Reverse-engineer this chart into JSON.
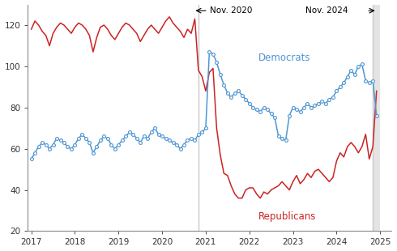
{
  "xlim": [
    2016.92,
    2025.25
  ],
  "ylim": [
    20,
    130
  ],
  "yticks": [
    20,
    40,
    60,
    80,
    100,
    120
  ],
  "xtick_years": [
    2017,
    2018,
    2019,
    2020,
    2021,
    2022,
    2023,
    2024,
    2025
  ],
  "nov2020_x": 2020.833,
  "nov2024_x": 2024.833,
  "vline_color": "#c8c8c8",
  "shade_color": "#e4e4e4",
  "dem_color": "#4f96d4",
  "rep_color": "#cc2222",
  "dem_label": "Democrats",
  "rep_label": "Republicans",
  "republicans": [
    [
      2017.0,
      118
    ],
    [
      2017.083,
      122
    ],
    [
      2017.167,
      120
    ],
    [
      2017.25,
      117
    ],
    [
      2017.333,
      115
    ],
    [
      2017.417,
      110
    ],
    [
      2017.5,
      116
    ],
    [
      2017.583,
      119
    ],
    [
      2017.667,
      121
    ],
    [
      2017.75,
      120
    ],
    [
      2017.833,
      118
    ],
    [
      2017.917,
      116
    ],
    [
      2018.0,
      119
    ],
    [
      2018.083,
      121
    ],
    [
      2018.167,
      120
    ],
    [
      2018.25,
      118
    ],
    [
      2018.333,
      115
    ],
    [
      2018.417,
      107
    ],
    [
      2018.5,
      114
    ],
    [
      2018.583,
      119
    ],
    [
      2018.667,
      120
    ],
    [
      2018.75,
      118
    ],
    [
      2018.833,
      115
    ],
    [
      2018.917,
      113
    ],
    [
      2019.0,
      116
    ],
    [
      2019.083,
      119
    ],
    [
      2019.167,
      121
    ],
    [
      2019.25,
      120
    ],
    [
      2019.333,
      118
    ],
    [
      2019.417,
      116
    ],
    [
      2019.5,
      112
    ],
    [
      2019.583,
      115
    ],
    [
      2019.667,
      118
    ],
    [
      2019.75,
      120
    ],
    [
      2019.833,
      118
    ],
    [
      2019.917,
      116
    ],
    [
      2020.0,
      119
    ],
    [
      2020.083,
      122
    ],
    [
      2020.167,
      124
    ],
    [
      2020.25,
      121
    ],
    [
      2020.333,
      119
    ],
    [
      2020.417,
      117
    ],
    [
      2020.5,
      114
    ],
    [
      2020.583,
      118
    ],
    [
      2020.667,
      116
    ],
    [
      2020.75,
      123
    ],
    [
      2020.833,
      98
    ],
    [
      2020.917,
      95
    ],
    [
      2021.0,
      88
    ],
    [
      2021.083,
      97
    ],
    [
      2021.167,
      99
    ],
    [
      2021.25,
      70
    ],
    [
      2021.333,
      57
    ],
    [
      2021.417,
      48
    ],
    [
      2021.5,
      47
    ],
    [
      2021.583,
      42
    ],
    [
      2021.667,
      38
    ],
    [
      2021.75,
      36
    ],
    [
      2021.833,
      36
    ],
    [
      2021.917,
      40
    ],
    [
      2022.0,
      41
    ],
    [
      2022.083,
      41
    ],
    [
      2022.167,
      38
    ],
    [
      2022.25,
      36
    ],
    [
      2022.333,
      39
    ],
    [
      2022.417,
      38
    ],
    [
      2022.5,
      40
    ],
    [
      2022.583,
      41
    ],
    [
      2022.667,
      42
    ],
    [
      2022.75,
      44
    ],
    [
      2022.833,
      42
    ],
    [
      2022.917,
      40
    ],
    [
      2023.0,
      44
    ],
    [
      2023.083,
      47
    ],
    [
      2023.167,
      43
    ],
    [
      2023.25,
      45
    ],
    [
      2023.333,
      48
    ],
    [
      2023.417,
      46
    ],
    [
      2023.5,
      49
    ],
    [
      2023.583,
      50
    ],
    [
      2023.667,
      48
    ],
    [
      2023.75,
      46
    ],
    [
      2023.833,
      44
    ],
    [
      2023.917,
      46
    ],
    [
      2024.0,
      54
    ],
    [
      2024.083,
      58
    ],
    [
      2024.167,
      56
    ],
    [
      2024.25,
      61
    ],
    [
      2024.333,
      63
    ],
    [
      2024.417,
      61
    ],
    [
      2024.5,
      58
    ],
    [
      2024.583,
      61
    ],
    [
      2024.667,
      67
    ],
    [
      2024.75,
      55
    ],
    [
      2024.833,
      61
    ],
    [
      2024.917,
      88
    ]
  ],
  "democrats": [
    [
      2017.0,
      55
    ],
    [
      2017.083,
      58
    ],
    [
      2017.167,
      61
    ],
    [
      2017.25,
      63
    ],
    [
      2017.333,
      62
    ],
    [
      2017.417,
      60
    ],
    [
      2017.5,
      62
    ],
    [
      2017.583,
      65
    ],
    [
      2017.667,
      64
    ],
    [
      2017.75,
      63
    ],
    [
      2017.833,
      61
    ],
    [
      2017.917,
      60
    ],
    [
      2018.0,
      62
    ],
    [
      2018.083,
      65
    ],
    [
      2018.167,
      67
    ],
    [
      2018.25,
      65
    ],
    [
      2018.333,
      63
    ],
    [
      2018.417,
      58
    ],
    [
      2018.5,
      61
    ],
    [
      2018.583,
      64
    ],
    [
      2018.667,
      66
    ],
    [
      2018.75,
      65
    ],
    [
      2018.833,
      62
    ],
    [
      2018.917,
      60
    ],
    [
      2019.0,
      62
    ],
    [
      2019.083,
      64
    ],
    [
      2019.167,
      66
    ],
    [
      2019.25,
      68
    ],
    [
      2019.333,
      67
    ],
    [
      2019.417,
      65
    ],
    [
      2019.5,
      63
    ],
    [
      2019.583,
      66
    ],
    [
      2019.667,
      65
    ],
    [
      2019.75,
      68
    ],
    [
      2019.833,
      70
    ],
    [
      2019.917,
      67
    ],
    [
      2020.0,
      66
    ],
    [
      2020.083,
      65
    ],
    [
      2020.167,
      64
    ],
    [
      2020.25,
      63
    ],
    [
      2020.333,
      62
    ],
    [
      2020.417,
      60
    ],
    [
      2020.5,
      62
    ],
    [
      2020.583,
      64
    ],
    [
      2020.667,
      65
    ],
    [
      2020.75,
      64
    ],
    [
      2020.833,
      67
    ],
    [
      2020.917,
      68
    ],
    [
      2021.0,
      70
    ],
    [
      2021.083,
      107
    ],
    [
      2021.167,
      106
    ],
    [
      2021.25,
      102
    ],
    [
      2021.333,
      96
    ],
    [
      2021.417,
      91
    ],
    [
      2021.5,
      87
    ],
    [
      2021.583,
      85
    ],
    [
      2021.667,
      87
    ],
    [
      2021.75,
      88
    ],
    [
      2021.833,
      86
    ],
    [
      2021.917,
      84
    ],
    [
      2022.0,
      82
    ],
    [
      2022.083,
      80
    ],
    [
      2022.167,
      79
    ],
    [
      2022.25,
      78
    ],
    [
      2022.333,
      80
    ],
    [
      2022.417,
      79
    ],
    [
      2022.5,
      77
    ],
    [
      2022.583,
      75
    ],
    [
      2022.667,
      66
    ],
    [
      2022.75,
      65
    ],
    [
      2022.833,
      64
    ],
    [
      2022.917,
      76
    ],
    [
      2023.0,
      80
    ],
    [
      2023.083,
      79
    ],
    [
      2023.167,
      78
    ],
    [
      2023.25,
      80
    ],
    [
      2023.333,
      82
    ],
    [
      2023.417,
      80
    ],
    [
      2023.5,
      81
    ],
    [
      2023.583,
      82
    ],
    [
      2023.667,
      83
    ],
    [
      2023.75,
      82
    ],
    [
      2023.833,
      84
    ],
    [
      2023.917,
      85
    ],
    [
      2024.0,
      88
    ],
    [
      2024.083,
      90
    ],
    [
      2024.167,
      92
    ],
    [
      2024.25,
      95
    ],
    [
      2024.333,
      98
    ],
    [
      2024.417,
      96
    ],
    [
      2024.5,
      100
    ],
    [
      2024.583,
      101
    ],
    [
      2024.667,
      93
    ],
    [
      2024.75,
      92
    ],
    [
      2024.833,
      93
    ],
    [
      2024.917,
      76
    ]
  ]
}
